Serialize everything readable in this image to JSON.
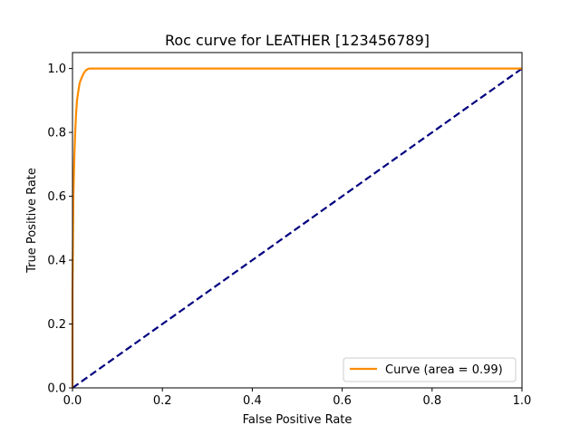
{
  "chart_data": {
    "type": "line",
    "title": "Roc curve for LEATHER [123456789]",
    "xlabel": "False Positive Rate",
    "ylabel": "True Positive Rate",
    "xlim": [
      0.0,
      1.0
    ],
    "ylim": [
      0.0,
      1.05
    ],
    "xticks": [
      0.0,
      0.2,
      0.4,
      0.6,
      0.8,
      1.0
    ],
    "yticks": [
      0.0,
      0.2,
      0.4,
      0.6,
      0.8,
      1.0
    ],
    "xtick_labels": [
      "0.0",
      "0.2",
      "0.4",
      "0.6",
      "0.8",
      "1.0"
    ],
    "ytick_labels": [
      "0.0",
      "0.2",
      "0.4",
      "0.6",
      "0.8",
      "1.0"
    ],
    "grid": false,
    "legend_position": "lower right",
    "series": [
      {
        "name": "Curve (area = 0.99)",
        "color": "#ff8c00",
        "style": "solid",
        "x": [
          0.0,
          0.0,
          0.002,
          0.004,
          0.006,
          0.008,
          0.01,
          0.013,
          0.016,
          0.02,
          0.025,
          0.03,
          0.035,
          0.04,
          0.06,
          0.1,
          0.2,
          0.4,
          0.6,
          0.8,
          1.0
        ],
        "y": [
          0.0,
          0.3,
          0.6,
          0.72,
          0.8,
          0.86,
          0.9,
          0.93,
          0.955,
          0.97,
          0.985,
          0.995,
          0.999,
          1.0,
          1.0,
          1.0,
          1.0,
          1.0,
          1.0,
          1.0,
          1.0
        ]
      },
      {
        "color": "#000080",
        "style": "dashed",
        "x": [
          0.0,
          1.0
        ],
        "y": [
          0.0,
          1.0
        ]
      }
    ]
  }
}
